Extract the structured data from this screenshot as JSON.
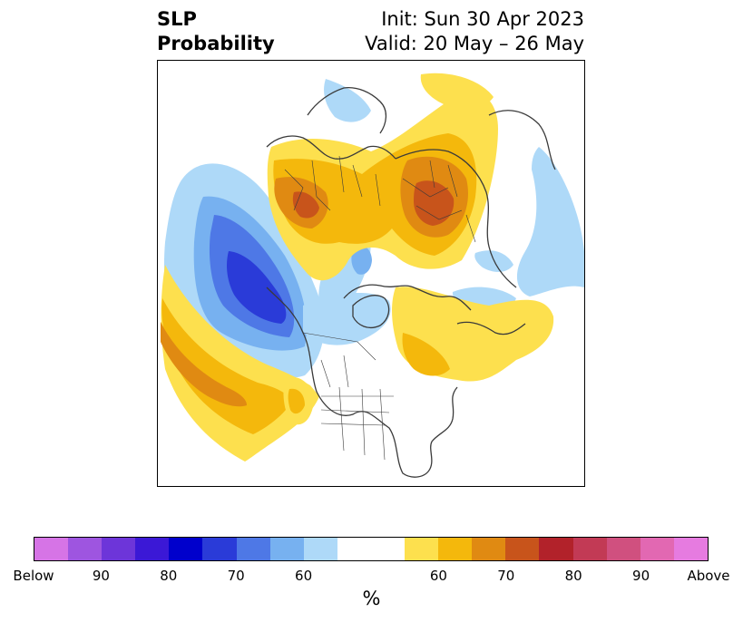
{
  "header": {
    "title_line1": "SLP",
    "title_line2": "Probability",
    "init_text": "Init: Sun 30 Apr 2023",
    "valid_text": "Valid: 20 May – 26 May"
  },
  "colorbar": {
    "colors": [
      "#d674e6",
      "#9e55e0",
      "#6d35d9",
      "#3b18d6",
      "#0000cc",
      "#2a3bd8",
      "#4e78e6",
      "#77b1f0",
      "#aed9f8",
      "#ffffff",
      "#ffffff",
      "#fde04e",
      "#f4b80c",
      "#e08a12",
      "#c8541b",
      "#b2222a",
      "#c23a55",
      "#d0507f",
      "#e268b2",
      "#e67be0"
    ],
    "tick_labels": [
      "Below",
      "90",
      "80",
      "70",
      "60",
      "60",
      "70",
      "80",
      "90",
      "Above"
    ],
    "unit": "%"
  },
  "map": {
    "region": "Northern Hemisphere polar stereographic",
    "legend_colors": {
      "below_60": "#aed9f8",
      "below_70": "#77b1f0",
      "below_80": "#4e78e6",
      "below_90": "#2a3bd8",
      "above_60": "#fde04e",
      "above_70": "#f4b80c",
      "above_80": "#e08a12",
      "above_90": "#c8541b"
    }
  }
}
